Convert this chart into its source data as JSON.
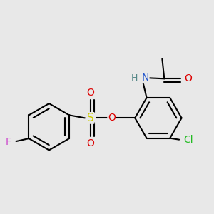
{
  "bg": "#e8e8e8",
  "bond_color": "#000000",
  "bond_lw": 1.5,
  "atom_colors": {
    "F": "#cc44cc",
    "O": "#dd0000",
    "S": "#cccc00",
    "N": "#2255cc",
    "H": "#558888",
    "Cl": "#22bb22",
    "C": "#000000"
  },
  "figsize": [
    3.0,
    3.0
  ],
  "dpi": 100,
  "xlim": [
    -1.4,
    1.6
  ],
  "ylim": [
    -1.3,
    1.3
  ]
}
